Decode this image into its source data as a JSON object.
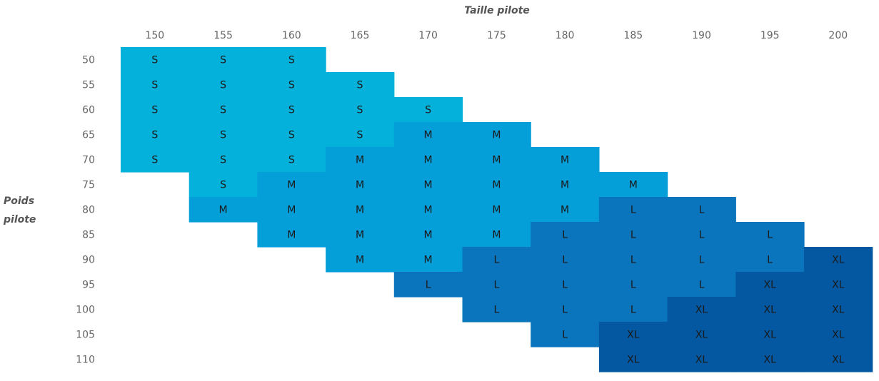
{
  "chart_data": {
    "type": "heatmap",
    "xlabel": "Taille pilote",
    "ylabel_lines": [
      "Poids",
      "pilote"
    ],
    "x": [
      "150",
      "155",
      "160",
      "165",
      "170",
      "175",
      "180",
      "185",
      "190",
      "195",
      "200"
    ],
    "y": [
      "50",
      "55",
      "60",
      "65",
      "70",
      "75",
      "80",
      "85",
      "90",
      "95",
      "100",
      "105",
      "110"
    ],
    "colors": {
      "S": "#04b1da",
      "M": "#049ed8",
      "L": "#0a74bc",
      "XL": "#0458a2"
    },
    "cells": [
      [
        "S",
        "S",
        "S",
        "",
        "",
        "",
        "",
        "",
        "",
        "",
        ""
      ],
      [
        "S",
        "S",
        "S",
        "S",
        "",
        "",
        "",
        "",
        "",
        "",
        ""
      ],
      [
        "S",
        "S",
        "S",
        "S",
        "S",
        "",
        "",
        "",
        "",
        "",
        ""
      ],
      [
        "S",
        "S",
        "S",
        "S",
        "M",
        "M",
        "",
        "",
        "",
        "",
        ""
      ],
      [
        "S",
        "S",
        "S",
        "M",
        "M",
        "M",
        "M",
        "",
        "",
        "",
        ""
      ],
      [
        "",
        "S",
        "M",
        "M",
        "M",
        "M",
        "M",
        "M",
        "",
        "",
        ""
      ],
      [
        "",
        "M",
        "M",
        "M",
        "M",
        "M",
        "M",
        "L",
        "L",
        "",
        ""
      ],
      [
        "",
        "",
        "M",
        "M",
        "M",
        "M",
        "L",
        "L",
        "L",
        "L",
        ""
      ],
      [
        "",
        "",
        "",
        "M",
        "M",
        "L",
        "L",
        "L",
        "L",
        "L",
        "XL"
      ],
      [
        "",
        "",
        "",
        "",
        "L",
        "L",
        "L",
        "L",
        "L",
        "XL",
        "XL"
      ],
      [
        "",
        "",
        "",
        "",
        "",
        "L",
        "L",
        "L",
        "XL",
        "XL",
        "XL"
      ],
      [
        "",
        "",
        "",
        "",
        "",
        "",
        "L",
        "XL",
        "XL",
        "XL",
        "XL"
      ],
      [
        "",
        "",
        "",
        "",
        "",
        "",
        "",
        "XL",
        "XL",
        "XL",
        "XL"
      ]
    ]
  }
}
